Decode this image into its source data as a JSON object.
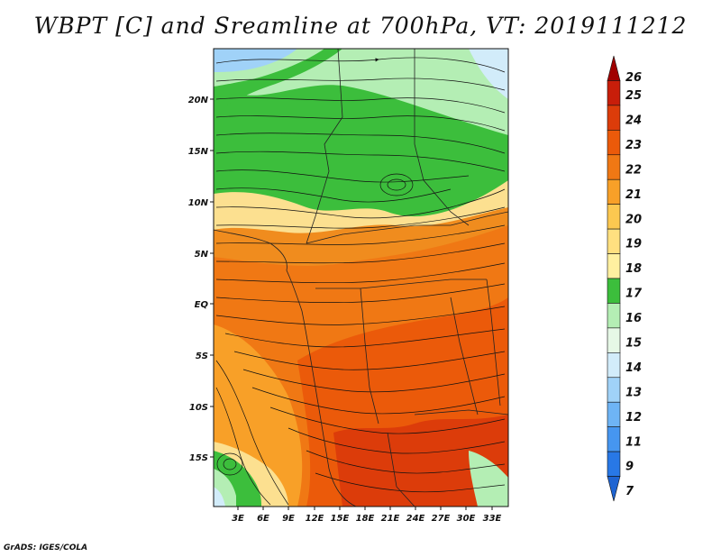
{
  "title": "WBPT [C] and Sreamline at 700hPa, VT: 2019111212",
  "credit": "GrADS: IGES/COLA",
  "map": {
    "lat_labels": [
      "20N",
      "15N",
      "10N",
      "5N",
      "EQ",
      "5S",
      "10S",
      "15S"
    ],
    "lon_labels": [
      "3E",
      "6E",
      "9E",
      "12E",
      "15E",
      "18E",
      "21E",
      "24E",
      "27E",
      "30E",
      "33E"
    ]
  },
  "colorbar": {
    "labels": [
      "7",
      "9",
      "11",
      "12",
      "13",
      "14",
      "15",
      "16",
      "17",
      "18",
      "19",
      "20",
      "21",
      "22",
      "23",
      "24",
      "25",
      "26"
    ],
    "colors": [
      "#1e64d2",
      "#2878e6",
      "#4696f0",
      "#6eb4f5",
      "#a0d2f8",
      "#d2ecfa",
      "#e6f8e6",
      "#b4eeb4",
      "#3cbe3c",
      "#fff0a0",
      "#ffe080",
      "#fcc850",
      "#f8a028",
      "#f07814",
      "#eb5a0a",
      "#dc3c0a",
      "#c81e0a",
      "#a00000"
    ]
  }
}
